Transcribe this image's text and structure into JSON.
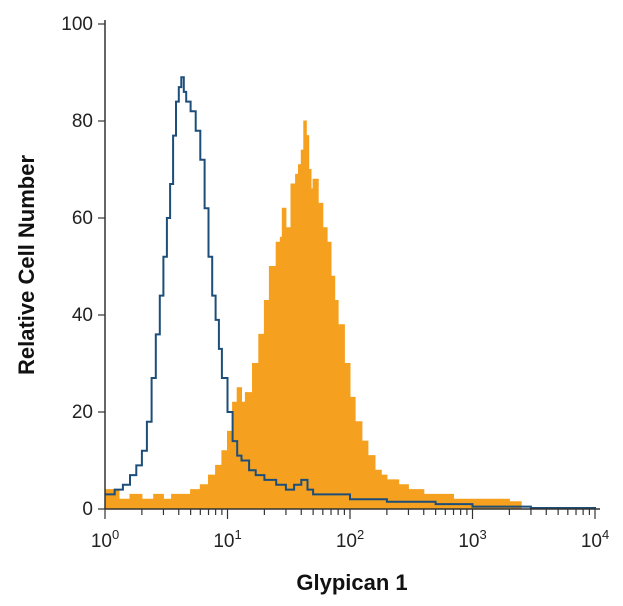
{
  "chart_data": {
    "type": "area",
    "xlabel": "Glypican 1",
    "ylabel": "Relative Cell Number",
    "xscale": "log",
    "xlim": [
      1,
      10000
    ],
    "ylim": [
      0,
      100
    ],
    "grid": false,
    "legend": "none",
    "x_ticks": [
      {
        "base": "10",
        "exp": "0"
      },
      {
        "base": "10",
        "exp": "1"
      },
      {
        "base": "10",
        "exp": "2"
      },
      {
        "base": "10",
        "exp": "3"
      },
      {
        "base": "10",
        "exp": "4"
      }
    ],
    "y_ticks": [
      "0",
      "20",
      "40",
      "60",
      "80",
      "100"
    ],
    "series": [
      {
        "style": "filled",
        "color": "#F5A11F",
        "points": [
          [
            1.0,
            4
          ],
          [
            1.3,
            2
          ],
          [
            1.6,
            3
          ],
          [
            2.0,
            2
          ],
          [
            2.5,
            3
          ],
          [
            3.0,
            2
          ],
          [
            3.5,
            3
          ],
          [
            4.0,
            3
          ],
          [
            5.0,
            4
          ],
          [
            6.0,
            5
          ],
          [
            7.0,
            7
          ],
          [
            8.0,
            9
          ],
          [
            9.0,
            12
          ],
          [
            10.0,
            16
          ],
          [
            11.0,
            22
          ],
          [
            12.0,
            25
          ],
          [
            13.0,
            22
          ],
          [
            14.0,
            24
          ],
          [
            16.0,
            30
          ],
          [
            18.0,
            36
          ],
          [
            20.0,
            43
          ],
          [
            22.0,
            50
          ],
          [
            25.0,
            55
          ],
          [
            27.0,
            56
          ],
          [
            28.0,
            62
          ],
          [
            30.0,
            58
          ],
          [
            33.0,
            67
          ],
          [
            36.0,
            69
          ],
          [
            38.0,
            71
          ],
          [
            40.0,
            74
          ],
          [
            42.0,
            80
          ],
          [
            44.0,
            77
          ],
          [
            46.0,
            70
          ],
          [
            48.0,
            66
          ],
          [
            50.0,
            68
          ],
          [
            55.0,
            63
          ],
          [
            60.0,
            58
          ],
          [
            65.0,
            55
          ],
          [
            70.0,
            48
          ],
          [
            75.0,
            43
          ],
          [
            80.0,
            38
          ],
          [
            90.0,
            30
          ],
          [
            100.0,
            23
          ],
          [
            110.0,
            18
          ],
          [
            125.0,
            14
          ],
          [
            140.0,
            11
          ],
          [
            160.0,
            8
          ],
          [
            180.0,
            7
          ],
          [
            200.0,
            6
          ],
          [
            250.0,
            5
          ],
          [
            300.0,
            4
          ],
          [
            400.0,
            3
          ],
          [
            500.0,
            3
          ],
          [
            700.0,
            2
          ],
          [
            1000.0,
            2
          ],
          [
            1500.0,
            2
          ],
          [
            2000.0,
            1.5
          ],
          [
            2500.0,
            1
          ]
        ]
      },
      {
        "style": "outline",
        "color": "#1D4E7A",
        "points": [
          [
            1.0,
            3
          ],
          [
            1.2,
            4
          ],
          [
            1.4,
            5
          ],
          [
            1.6,
            7
          ],
          [
            1.8,
            9
          ],
          [
            2.0,
            12
          ],
          [
            2.2,
            18
          ],
          [
            2.4,
            27
          ],
          [
            2.6,
            36
          ],
          [
            2.8,
            44
          ],
          [
            3.0,
            52
          ],
          [
            3.2,
            60
          ],
          [
            3.4,
            67
          ],
          [
            3.6,
            77
          ],
          [
            3.8,
            84
          ],
          [
            4.0,
            87
          ],
          [
            4.2,
            89
          ],
          [
            4.4,
            86
          ],
          [
            4.6,
            84
          ],
          [
            5.0,
            82
          ],
          [
            5.5,
            78
          ],
          [
            6.0,
            72
          ],
          [
            6.5,
            62
          ],
          [
            7.0,
            52
          ],
          [
            7.5,
            44
          ],
          [
            8.0,
            39
          ],
          [
            8.5,
            33
          ],
          [
            9.0,
            27
          ],
          [
            10.0,
            20
          ],
          [
            11.0,
            14
          ],
          [
            12.0,
            11
          ],
          [
            13.0,
            10
          ],
          [
            15.0,
            8
          ],
          [
            17.0,
            7
          ],
          [
            20.0,
            6
          ],
          [
            25.0,
            5
          ],
          [
            30.0,
            4
          ],
          [
            35.0,
            5
          ],
          [
            40.0,
            6
          ],
          [
            45.0,
            4
          ],
          [
            50.0,
            3
          ],
          [
            70.0,
            3
          ],
          [
            100.0,
            2
          ],
          [
            150.0,
            2
          ],
          [
            200.0,
            1.5
          ],
          [
            300.0,
            1.5
          ],
          [
            500.0,
            1
          ],
          [
            800.0,
            1
          ],
          [
            1000.0,
            0.5
          ],
          [
            3000.0,
            0.2
          ],
          [
            10000.0,
            0.1
          ]
        ]
      }
    ]
  }
}
